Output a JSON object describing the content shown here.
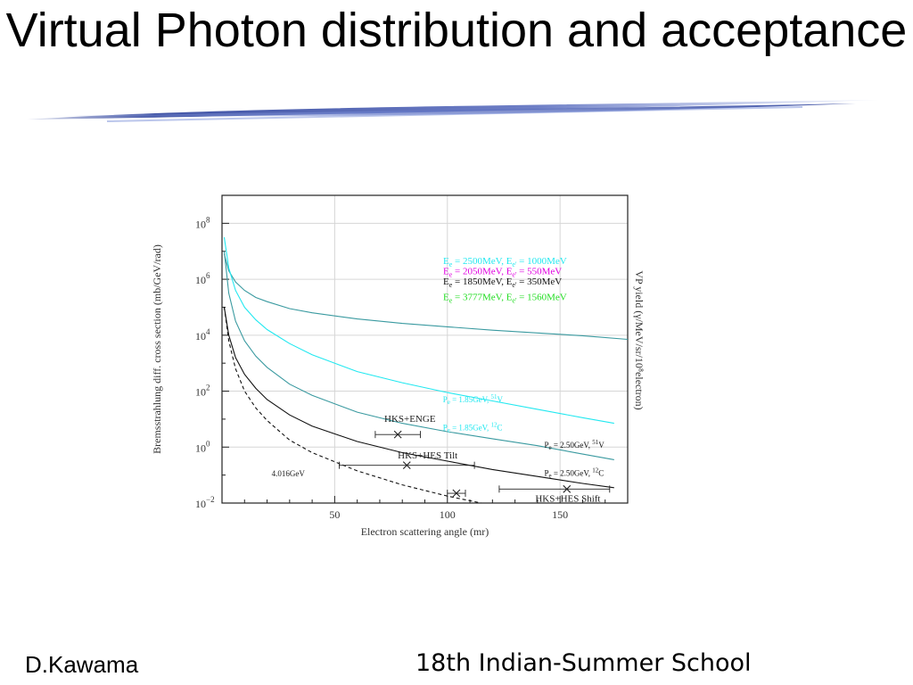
{
  "slide": {
    "title": "Virtual Photon distribution and acceptance",
    "footer_left": "D.Kawama",
    "footer_right": "18th Indian-Summer School"
  },
  "colors": {
    "cyan": "#22e8f0",
    "magenta": "#e000e0",
    "green": "#22dd22",
    "teal": "#3a9aa0",
    "black": "#111111",
    "swoosh_dark": "#2a3f9a",
    "swoosh_light": "#9fb0e6"
  },
  "chart_data": {
    "type": "line",
    "xlabel": "Electron scattering angle (mr)",
    "ylabel": "Bremsstrahlung diff. cross section (mb/GeV/rad)",
    "ylabel_right": "VP yield (γ/MeV/sr/10⁸electron)",
    "xlim": [
      0,
      180
    ],
    "ylim_log10": [
      -2,
      9
    ],
    "log_y": true,
    "x_ticks": [
      50,
      100,
      150
    ],
    "y_ticks": [
      {
        "exp": -2,
        "label": "10",
        "sup": "−2"
      },
      {
        "exp": 0,
        "label": "10",
        "sup": "0"
      },
      {
        "exp": 2,
        "label": "10",
        "sup": "2"
      },
      {
        "exp": 4,
        "label": "10",
        "sup": "4"
      },
      {
        "exp": 6,
        "label": "10",
        "sup": "6"
      },
      {
        "exp": 8,
        "label": "10",
        "sup": "8"
      }
    ],
    "grid": true,
    "legend": [
      {
        "main": "E",
        "sub": "e",
        "text1": " = 2500MeV, E",
        "sub2": "e'",
        "text2": " = 1000MeV",
        "color": "#22e8f0"
      },
      {
        "main": "E",
        "sub": "e",
        "text1": " = 2050MeV, E",
        "sub2": "e'",
        "text2": " = 550MeV",
        "color": "#e000e0"
      },
      {
        "main": "E",
        "sub": "e",
        "text1": " = 1850MeV, E",
        "sub2": "e'",
        "text2": " = 350MeV",
        "color": "#111111"
      },
      {
        "main": "E",
        "sub": "e",
        "text1": " = 3777MeV, E",
        "sub2": "e'",
        "text2": " = 1560MeV",
        "color": "#22dd22"
      }
    ],
    "series": [
      {
        "key": "brems_top",
        "color": "#3a9aa0",
        "dash": false,
        "x": [
          1,
          3,
          6,
          10,
          15,
          20,
          30,
          40,
          60,
          80,
          100,
          120,
          140,
          160,
          181
        ],
        "log10_y": [
          6.9,
          6.3,
          5.9,
          5.6,
          5.35,
          5.2,
          4.95,
          4.8,
          4.58,
          4.42,
          4.3,
          4.18,
          4.08,
          3.98,
          3.85
        ]
      },
      {
        "key": "cyan_vp",
        "color": "#22e8f0",
        "dash": false,
        "x": [
          1,
          3,
          6,
          10,
          15,
          20,
          30,
          40,
          60,
          80,
          100,
          120,
          140,
          160,
          174
        ],
        "log10_y": [
          7.5,
          6.4,
          5.6,
          5.0,
          4.55,
          4.2,
          3.7,
          3.3,
          2.7,
          2.3,
          1.95,
          1.65,
          1.35,
          1.05,
          0.85
        ]
      },
      {
        "key": "teal_vp",
        "color": "#3a9aa0",
        "dash": false,
        "x": [
          1,
          3,
          6,
          10,
          15,
          20,
          30,
          40,
          60,
          80,
          100,
          120,
          140,
          160,
          174
        ],
        "log10_y": [
          7.0,
          5.5,
          4.5,
          3.8,
          3.25,
          2.85,
          2.25,
          1.85,
          1.25,
          0.85,
          0.55,
          0.3,
          0.05,
          -0.25,
          -0.45
        ]
      },
      {
        "key": "black_vp",
        "color": "#111111",
        "dash": false,
        "x": [
          1,
          3,
          6,
          10,
          15,
          20,
          30,
          40,
          60,
          80,
          100,
          120,
          140,
          160,
          174
        ],
        "log10_y": [
          5.0,
          4.0,
          3.2,
          2.6,
          2.1,
          1.7,
          1.15,
          0.75,
          0.2,
          -0.2,
          -0.5,
          -0.8,
          -1.05,
          -1.3,
          -1.45
        ]
      },
      {
        "key": "dashed_4016",
        "color": "#111111",
        "dash": true,
        "x": [
          1,
          3,
          6,
          10,
          15,
          20,
          30,
          40,
          60,
          80,
          100,
          115
        ],
        "log10_y": [
          5.0,
          3.8,
          2.8,
          2.0,
          1.4,
          0.95,
          0.25,
          -0.2,
          -0.85,
          -1.35,
          -1.75,
          -2.0
        ]
      }
    ],
    "annotations": [
      {
        "text": "HKS+ENGE",
        "x": 72,
        "log10_y": 0.9
      },
      {
        "text": "HKS+HES Tilt",
        "x": 78,
        "log10_y": -0.4
      },
      {
        "text": "4.016GeV",
        "x": 22,
        "log10_y": -1.05
      },
      {
        "text": "HKS+HES Shift",
        "x": 139,
        "log10_y": -1.95
      }
    ],
    "acceptance_markers": [
      {
        "x": 78,
        "log10_y": 0.45,
        "xmin": 68,
        "xmax": 88
      },
      {
        "x": 82,
        "log10_y": -0.65,
        "xmin": 52,
        "xmax": 112
      },
      {
        "x": 104,
        "log10_y": -1.65,
        "xmin": 100,
        "xmax": 108
      },
      {
        "x": 153,
        "log10_y": -1.5,
        "xmin": 123,
        "xmax": 172
      }
    ],
    "curve_labels": [
      {
        "pre": "P",
        "sub": "e",
        "mid": " = 1.85GeV, ",
        "sup": "51",
        "post": "V",
        "x": 98,
        "log10_y": 1.6,
        "color": "#22e8f0"
      },
      {
        "pre": "P",
        "sub": "e",
        "mid": " = 1.85GeV, ",
        "sup": "12",
        "post": "C",
        "x": 98,
        "log10_y": 0.6,
        "color": "#22e8f0"
      },
      {
        "pre": "P",
        "sub": "e",
        "mid": " = 2.50GeV, ",
        "sup": "51",
        "post": "V",
        "x": 143,
        "log10_y": -0.02,
        "color": "#111111"
      },
      {
        "pre": "P",
        "sub": "e",
        "mid": " = 2.50GeV, ",
        "sup": "12",
        "post": "C",
        "x": 143,
        "log10_y": -1.03,
        "color": "#111111"
      }
    ]
  }
}
